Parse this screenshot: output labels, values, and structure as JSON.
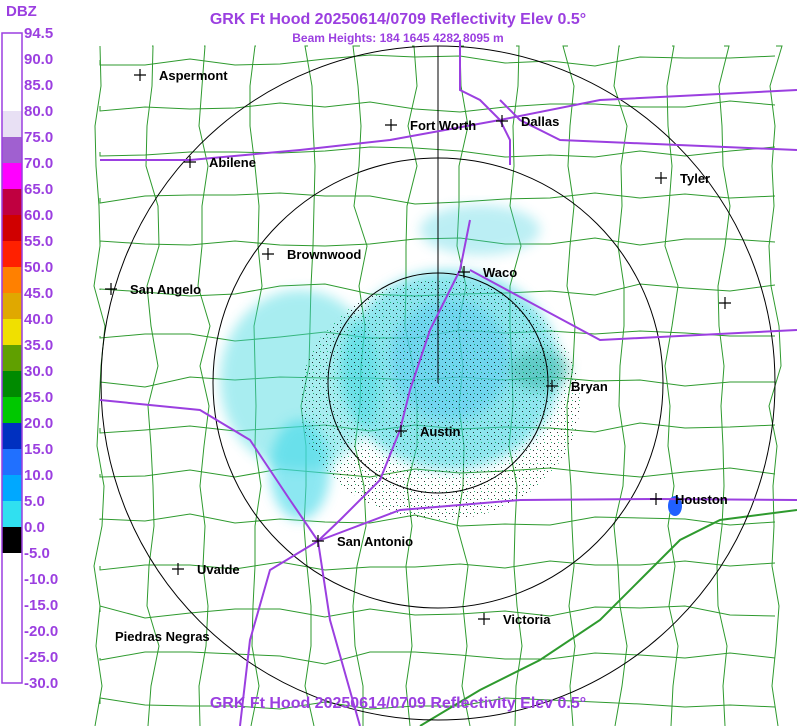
{
  "header": {
    "title": "GRK Ft Hood 20250614/0709 Reflectivity Elev 0.5°",
    "subtitle": "Beam Heights: 184 1645 4282 8095 m"
  },
  "legend": {
    "unit": "DBZ",
    "labels": [
      "94.5",
      "90.0",
      "85.0",
      "80.0",
      "75.0",
      "70.0",
      "65.0",
      "60.0",
      "55.0",
      "50.0",
      "45.0",
      "40.0",
      "35.0",
      "30.0",
      "25.0",
      "20.0",
      "15.0",
      "10.0",
      "5.0",
      "0.0",
      "-5.0",
      "-10.0",
      "-15.0",
      "-20.0",
      "-25.0",
      "-30.0"
    ]
  },
  "cities": [
    {
      "label": "Aspermont"
    },
    {
      "label": "Abilene"
    },
    {
      "label": "Fort Worth"
    },
    {
      "label": "Dallas"
    },
    {
      "label": "Tyler"
    },
    {
      "label": "Brownwood"
    },
    {
      "label": "Waco"
    },
    {
      "label": "San Angelo"
    },
    {
      "label": "Bryan"
    },
    {
      "label": "Austin"
    },
    {
      "label": "Houston"
    },
    {
      "label": "San Antonio"
    },
    {
      "label": "Uvalde"
    },
    {
      "label": "Victoria"
    },
    {
      "label": "Piedras Negras"
    }
  ],
  "footer": {
    "title": "GRK Ft Hood 20250614/0709 Reflectivity Elev 0.5°"
  }
}
